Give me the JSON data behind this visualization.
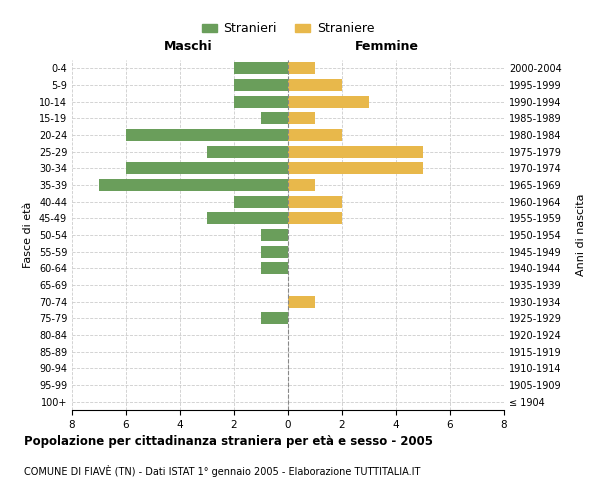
{
  "age_groups": [
    "100+",
    "95-99",
    "90-94",
    "85-89",
    "80-84",
    "75-79",
    "70-74",
    "65-69",
    "60-64",
    "55-59",
    "50-54",
    "45-49",
    "40-44",
    "35-39",
    "30-34",
    "25-29",
    "20-24",
    "15-19",
    "10-14",
    "5-9",
    "0-4"
  ],
  "birth_years": [
    "≤ 1904",
    "1905-1909",
    "1910-1914",
    "1915-1919",
    "1920-1924",
    "1925-1929",
    "1930-1934",
    "1935-1939",
    "1940-1944",
    "1945-1949",
    "1950-1954",
    "1955-1959",
    "1960-1964",
    "1965-1969",
    "1970-1974",
    "1975-1979",
    "1980-1984",
    "1985-1989",
    "1990-1994",
    "1995-1999",
    "2000-2004"
  ],
  "males": [
    0,
    0,
    0,
    0,
    0,
    1,
    0,
    0,
    1,
    1,
    1,
    3,
    2,
    7,
    6,
    3,
    6,
    1,
    2,
    2,
    2
  ],
  "females": [
    0,
    0,
    0,
    0,
    0,
    0,
    1,
    0,
    0,
    0,
    0,
    2,
    2,
    1,
    5,
    5,
    2,
    1,
    3,
    2,
    1
  ],
  "male_color": "#6a9e5b",
  "female_color": "#e8b84b",
  "background_color": "#ffffff",
  "grid_color": "#cccccc",
  "title": "Popolazione per cittadinanza straniera per età e sesso - 2005",
  "subtitle": "COMUNE DI FIAVÈ (TN) - Dati ISTAT 1° gennaio 2005 - Elaborazione TUTTITALIA.IT",
  "xlabel_left": "Maschi",
  "xlabel_right": "Femmine",
  "ylabel_left": "Fasce di età",
  "ylabel_right": "Anni di nascita",
  "legend_male": "Stranieri",
  "legend_female": "Straniere",
  "xlim": 8
}
